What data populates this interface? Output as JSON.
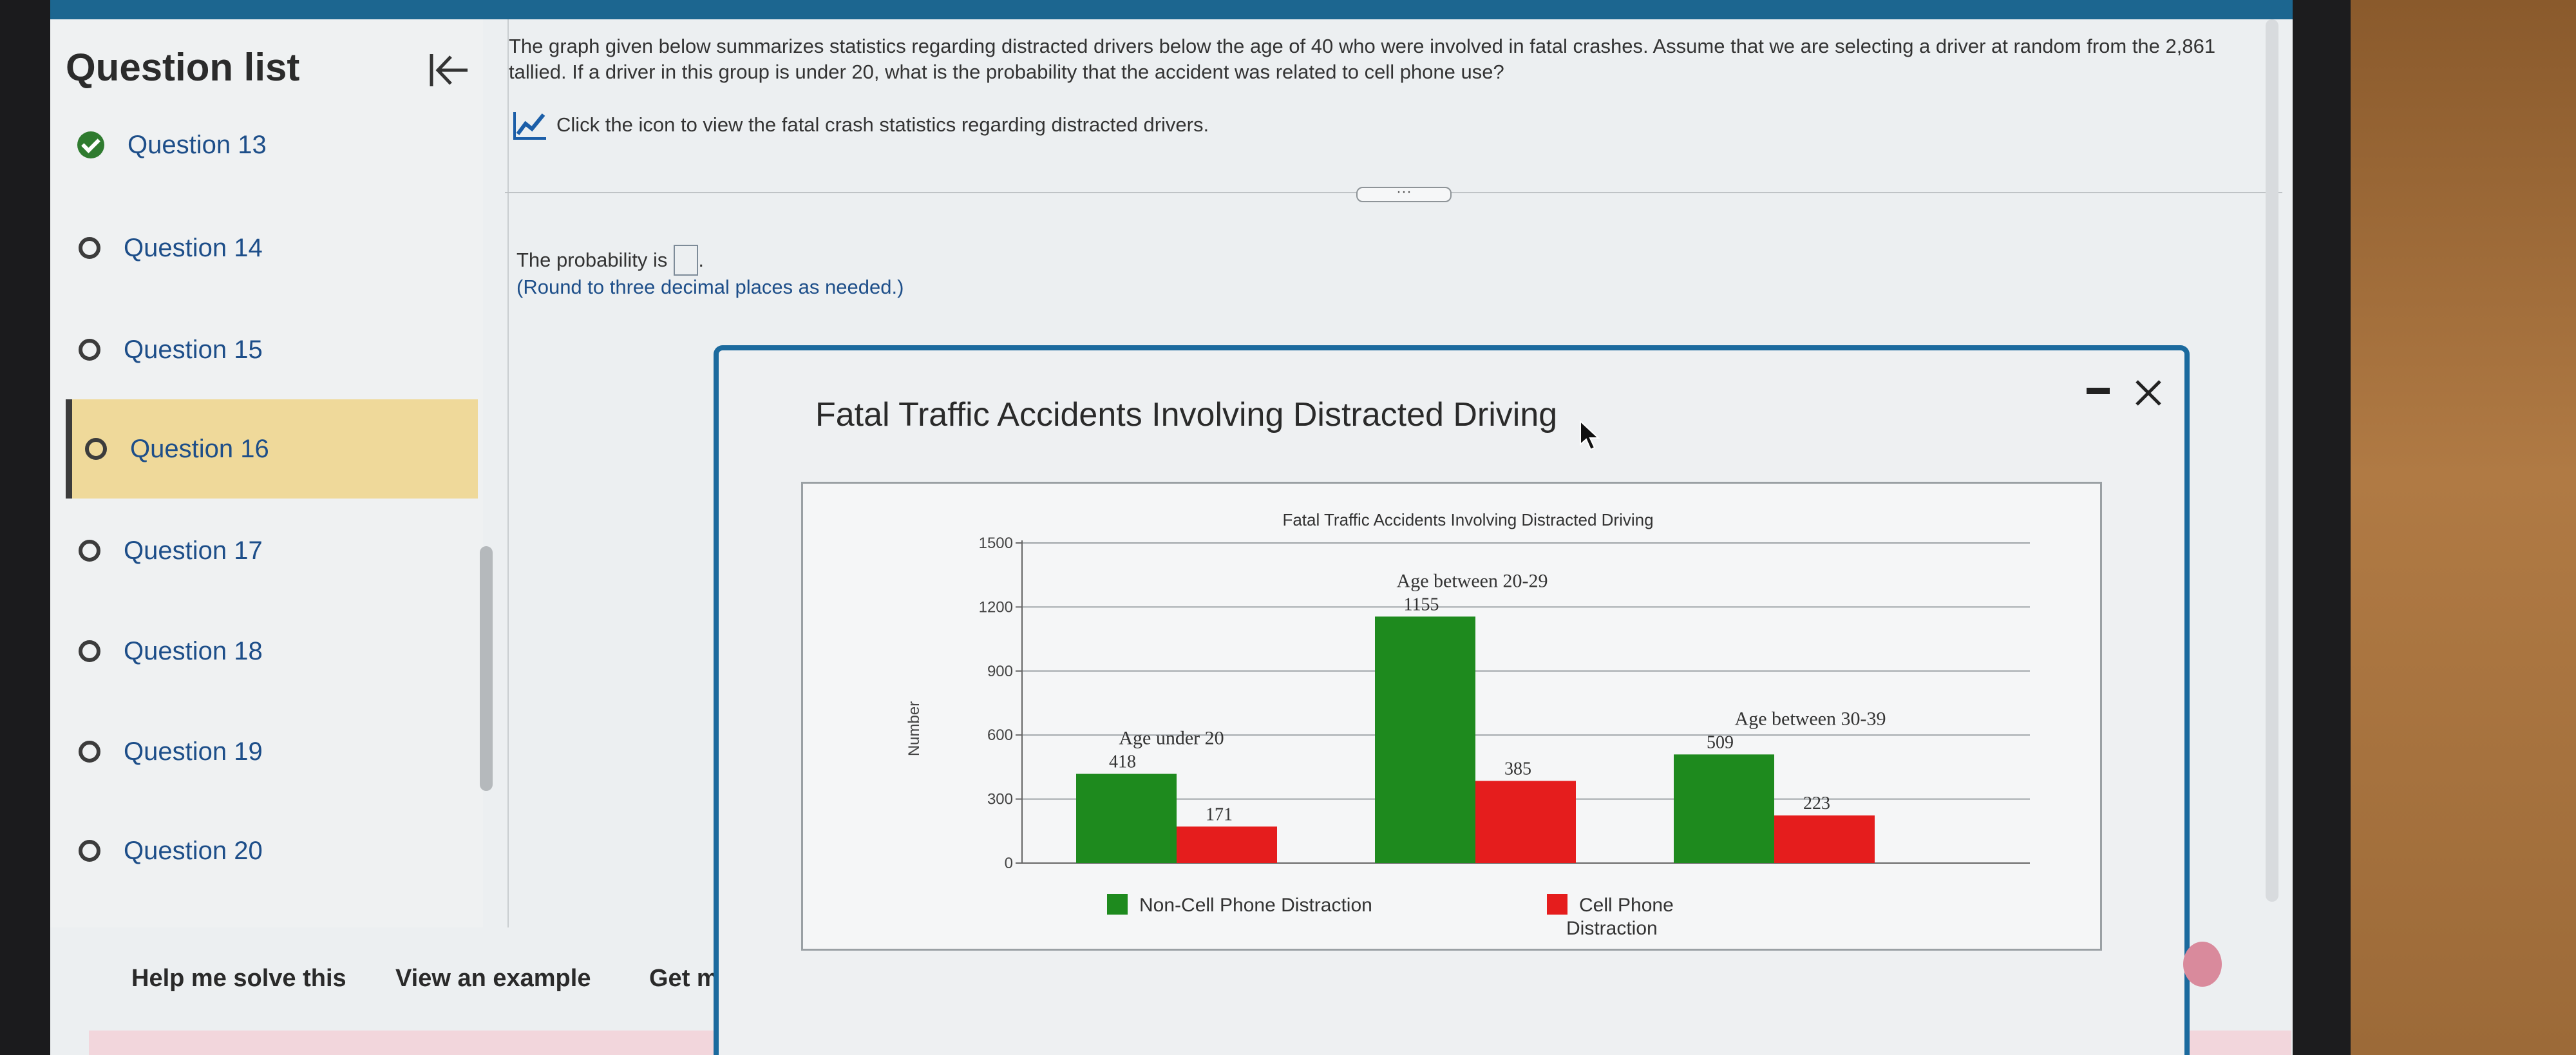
{
  "sidebar": {
    "title": "Question list",
    "items": [
      {
        "label": "Question 13",
        "status": "complete"
      },
      {
        "label": "Question 14",
        "status": "open"
      },
      {
        "label": "Question 15",
        "status": "open"
      },
      {
        "label": "Question 16",
        "status": "current"
      },
      {
        "label": "Question 17",
        "status": "open"
      },
      {
        "label": "Question 18",
        "status": "open"
      },
      {
        "label": "Question 19",
        "status": "open"
      },
      {
        "label": "Question 20",
        "status": "open"
      }
    ]
  },
  "footer": {
    "help_label": "Help me solve this",
    "example_label": "View an example",
    "more_label": "Get more h"
  },
  "question": {
    "text": "The graph given below summarizes statistics regarding distracted drivers below the age of 40 who were involved in fatal crashes. Assume that we are selecting a driver at random from the 2,861 tallied. If a driver in this group is under 20, what is the probability that the accident was related to cell phone use?",
    "stats_link": "Click the icon to view the fatal crash statistics regarding distracted drivers.",
    "answer_prefix": "The probability is",
    "answer_suffix": ".",
    "round_note": "(Round to three decimal places as needed.)"
  },
  "popup": {
    "title": "Fatal Traffic Accidents Involving Distracted Driving"
  },
  "chart_data": {
    "type": "bar",
    "title": "Fatal Traffic Accidents Involving Distracted Driving",
    "ylabel": "Number",
    "xlabel": "",
    "ylim": [
      0,
      1500
    ],
    "yticks": [
      "0",
      "300",
      "600",
      "900",
      "1200",
      "1500"
    ],
    "ytick_values": [
      0,
      300,
      600,
      900,
      1200,
      1500
    ],
    "grid": true,
    "legend_placement": "bottom",
    "categories": [
      "Age under 20",
      "Age between 20-29",
      "Age between 30-39"
    ],
    "series": [
      {
        "name": "Non-Cell Phone Distraction",
        "color": "#1e8a1e",
        "values": [
          418,
          1155,
          509
        ]
      },
      {
        "name": "Cell Phone Distraction",
        "color": "#e51d1d",
        "values": [
          171,
          385,
          223
        ]
      }
    ],
    "legend_lines": [
      [
        "Non-Cell Phone Distraction"
      ],
      [
        "Cell Phone",
        "Distraction"
      ]
    ]
  },
  "colors": {
    "accent": "#1b6a9e",
    "current_item": "#efd99a",
    "link_blue": "#1d4e89"
  }
}
